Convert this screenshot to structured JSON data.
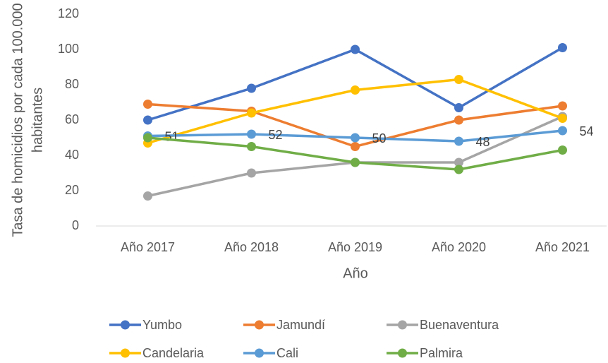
{
  "chart_data": {
    "type": "line",
    "x_label": "Año",
    "y_label": [
      "Tasa de homicidios por cada 100.000",
      "habitantes"
    ],
    "categories": [
      "Año 2017",
      "Año 2018",
      "Año 2019",
      "Año 2020",
      "Año 2021"
    ],
    "series": [
      {
        "name": "Yumbo",
        "color": "#4472c4",
        "values": [
          60,
          78,
          100,
          67,
          101
        ]
      },
      {
        "name": "Jamundí",
        "color": "#ed7d31",
        "values": [
          69,
          65,
          45,
          60,
          68
        ]
      },
      {
        "name": "Buenaventura",
        "color": "#a5a5a5",
        "values": [
          17,
          30,
          36,
          36,
          62
        ]
      },
      {
        "name": "Candelaria",
        "color": "#ffc000",
        "values": [
          47,
          64,
          77,
          83,
          61
        ]
      },
      {
        "name": "Cali",
        "color": "#5b9bd5",
        "values": [
          51,
          52,
          50,
          48,
          54
        ],
        "data_labels": true
      },
      {
        "name": "Palmira",
        "color": "#70ad47",
        "values": [
          50,
          45,
          36,
          32,
          43
        ]
      }
    ],
    "ylim": [
      0,
      120
    ],
    "yticks": [
      0,
      20,
      40,
      60,
      80,
      100,
      120
    ],
    "grid": false,
    "legend": "bottom"
  }
}
